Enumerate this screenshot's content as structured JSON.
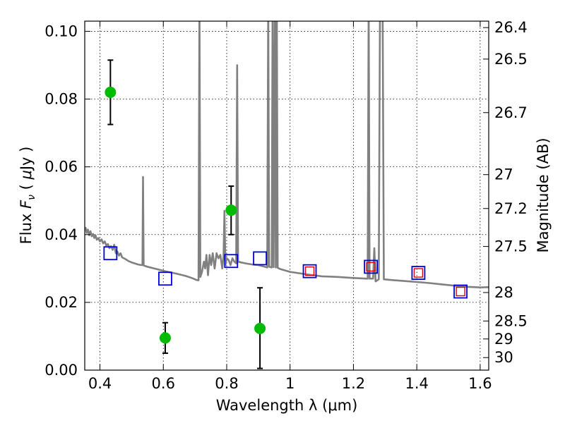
{
  "chart_data": {
    "type": "scatter",
    "xlabel": "Wavelength  λ (μm)",
    "ylabel": "Flux  F_ν  ( μJy )",
    "ylabel_right": "Magnitude (AB)",
    "xlim": [
      0.352,
      1.627
    ],
    "ylim": [
      0.0,
      0.103
    ],
    "x_ticks": [
      0.4,
      0.6,
      0.8,
      1.0,
      1.2,
      1.4,
      1.6
    ],
    "x_tick_labels": [
      "0.4",
      "0.6",
      "0.8",
      "1",
      "1.2",
      "1.4",
      "1.6"
    ],
    "y_ticks": [
      0.0,
      0.02,
      0.04,
      0.06,
      0.08,
      0.1
    ],
    "y_tick_labels": [
      "0.00",
      "0.02",
      "0.04",
      "0.06",
      "0.08",
      "0.10"
    ],
    "right_axis_ticks": [
      {
        "flux": 0.1011,
        "label": "26.4"
      },
      {
        "flux": 0.0918,
        "label": "26.5"
      },
      {
        "flux": 0.076,
        "label": "26.7"
      },
      {
        "flux": 0.0577,
        "label": "27"
      },
      {
        "flux": 0.0477,
        "label": "27.2"
      },
      {
        "flux": 0.0365,
        "label": "27.5"
      },
      {
        "flux": 0.0229,
        "label": "28"
      },
      {
        "flux": 0.0145,
        "label": "28.5"
      },
      {
        "flux": 0.0092,
        "label": "29"
      },
      {
        "flux": 0.0037,
        "label": "30"
      }
    ],
    "grid": true,
    "series": [
      {
        "kind": "line",
        "color": "#808080",
        "points": [
          [
            0.352,
            0.0415
          ],
          [
            0.355,
            0.042
          ],
          [
            0.358,
            0.0405
          ],
          [
            0.362,
            0.0415
          ],
          [
            0.366,
            0.0398
          ],
          [
            0.37,
            0.041
          ],
          [
            0.374,
            0.0395
          ],
          [
            0.378,
            0.0402
          ],
          [
            0.382,
            0.039
          ],
          [
            0.386,
            0.0398
          ],
          [
            0.39,
            0.0385
          ],
          [
            0.395,
            0.039
          ],
          [
            0.4,
            0.038
          ],
          [
            0.405,
            0.0386
          ],
          [
            0.41,
            0.0374
          ],
          [
            0.415,
            0.038
          ],
          [
            0.42,
            0.0368
          ],
          [
            0.425,
            0.0372
          ],
          [
            0.43,
            0.036
          ],
          [
            0.435,
            0.0366
          ],
          [
            0.44,
            0.0355
          ],
          [
            0.445,
            0.037
          ],
          [
            0.45,
            0.0345
          ],
          [
            0.455,
            0.035
          ],
          [
            0.46,
            0.0338
          ],
          [
            0.465,
            0.0345
          ],
          [
            0.47,
            0.0333
          ],
          [
            0.48,
            0.0328
          ],
          [
            0.49,
            0.0322
          ],
          [
            0.5,
            0.0318
          ],
          [
            0.51,
            0.0315
          ],
          [
            0.52,
            0.0312
          ],
          [
            0.53,
            0.031
          ],
          [
            0.534,
            0.031
          ],
          [
            0.536,
            0.057
          ],
          [
            0.538,
            0.0309
          ],
          [
            0.55,
            0.0305
          ],
          [
            0.58,
            0.0298
          ],
          [
            0.61,
            0.0291
          ],
          [
            0.64,
            0.0285
          ],
          [
            0.67,
            0.0278
          ],
          [
            0.69,
            0.0272
          ],
          [
            0.7,
            0.0268
          ],
          [
            0.705,
            0.0266
          ],
          [
            0.711,
            0.0265
          ],
          [
            0.714,
            0.11
          ],
          [
            0.717,
            0.0275
          ],
          [
            0.722,
            0.029
          ],
          [
            0.728,
            0.032
          ],
          [
            0.732,
            0.03
          ],
          [
            0.736,
            0.034
          ],
          [
            0.741,
            0.028
          ],
          [
            0.746,
            0.034
          ],
          [
            0.751,
            0.031
          ],
          [
            0.756,
            0.0345
          ],
          [
            0.762,
            0.03
          ],
          [
            0.768,
            0.0345
          ],
          [
            0.774,
            0.033
          ],
          [
            0.78,
            0.034
          ],
          [
            0.786,
            0.03
          ],
          [
            0.79,
            0.0335
          ],
          [
            0.793,
            0.047
          ],
          [
            0.796,
            0.031
          ],
          [
            0.8,
            0.033
          ],
          [
            0.806,
            0.0325
          ],
          [
            0.812,
            0.031
          ],
          [
            0.818,
            0.033
          ],
          [
            0.824,
            0.032
          ],
          [
            0.83,
            0.0315
          ],
          [
            0.833,
            0.09
          ],
          [
            0.836,
            0.032
          ],
          [
            0.845,
            0.0318
          ],
          [
            0.86,
            0.0315
          ],
          [
            0.88,
            0.0312
          ],
          [
            0.9,
            0.031
          ],
          [
            0.92,
            0.0305
          ],
          [
            0.928,
            0.0303
          ],
          [
            0.931,
            0.11
          ],
          [
            0.934,
            0.0305
          ],
          [
            0.942,
            0.0303
          ],
          [
            0.945,
            0.11
          ],
          [
            0.948,
            0.0304
          ],
          [
            0.952,
            0.11
          ],
          [
            0.955,
            0.0303
          ],
          [
            0.958,
            0.11
          ],
          [
            0.961,
            0.0302
          ],
          [
            0.97,
            0.0298
          ],
          [
            1.0,
            0.029
          ],
          [
            1.05,
            0.0283
          ],
          [
            1.1,
            0.0277
          ],
          [
            1.15,
            0.0275
          ],
          [
            1.2,
            0.0272
          ],
          [
            1.24,
            0.027
          ],
          [
            1.245,
            0.027
          ],
          [
            1.248,
            0.11
          ],
          [
            1.251,
            0.027
          ],
          [
            1.262,
            0.027
          ],
          [
            1.266,
            0.036
          ],
          [
            1.27,
            0.0262
          ],
          [
            1.28,
            0.0268
          ],
          [
            1.284,
            0.11
          ],
          [
            1.288,
            0.11
          ],
          [
            1.292,
            0.11
          ],
          [
            1.296,
            0.0268
          ],
          [
            1.32,
            0.0266
          ],
          [
            1.36,
            0.0263
          ],
          [
            1.4,
            0.026
          ],
          [
            1.44,
            0.0257
          ],
          [
            1.48,
            0.0253
          ],
          [
            1.52,
            0.0249
          ],
          [
            1.56,
            0.0246
          ],
          [
            1.6,
            0.0244
          ],
          [
            1.627,
            0.0245
          ]
        ]
      },
      {
        "kind": "square-marker",
        "color": "#0000dd",
        "points": [
          [
            0.433,
            0.0345
          ],
          [
            0.606,
            0.027
          ],
          [
            0.814,
            0.0322
          ],
          [
            0.905,
            0.033
          ],
          [
            1.062,
            0.0292
          ],
          [
            1.255,
            0.0305
          ],
          [
            1.405,
            0.0287
          ],
          [
            1.538,
            0.0232
          ]
        ]
      },
      {
        "kind": "square-marker-small",
        "color": "#dd0000",
        "points": [
          [
            1.062,
            0.0292
          ],
          [
            1.255,
            0.0305
          ],
          [
            1.405,
            0.0287
          ],
          [
            1.538,
            0.0232
          ]
        ]
      },
      {
        "kind": "point-errorbar",
        "color": "#00bb00",
        "points": [
          {
            "x": 0.433,
            "y": 0.082,
            "yerr_low": 0.0725,
            "yerr_high": 0.0915
          },
          {
            "x": 0.606,
            "y": 0.0095,
            "yerr_low": 0.005,
            "yerr_high": 0.014
          },
          {
            "x": 0.814,
            "y": 0.0472,
            "yerr_low": 0.04,
            "yerr_high": 0.0543
          },
          {
            "x": 0.905,
            "y": 0.0123,
            "yerr_low": 0.0005,
            "yerr_high": 0.0243
          }
        ]
      }
    ]
  }
}
